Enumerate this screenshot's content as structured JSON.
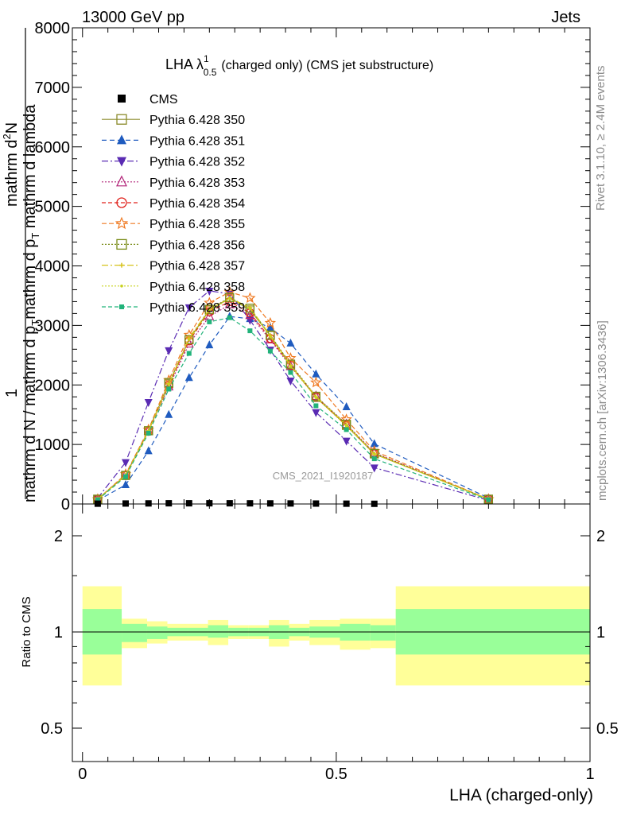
{
  "header": {
    "left": "13000 GeV pp",
    "right": "Jets"
  },
  "side_text": {
    "rivet": "Rivet 3.1.10, ≥ 2.4M events",
    "mcplots": "mcplots.cern.ch [arXiv:1306.3436]"
  },
  "watermark": "CMS_2021_I1920187",
  "chart_data": {
    "type": "line",
    "title_main": "LHA λ",
    "title_sup": "1",
    "title_sub": "0.5",
    "title_rest": "(charged only) (CMS jet substructure)",
    "xlabel": "LHA (charged-only)",
    "ylabel_line1": "mathrm d",
    "ylabel_line1_sup": "2",
    "ylabel_line1_rest": "N",
    "ylabel_line2": "mathrm d p",
    "ylabel_line2_sub": "T",
    "ylabel_line2_rest": " mathrm d lambda",
    "ylabel_frac_1": "1",
    "ylabel_frac_2": "mathrm d N / mathrm d p",
    "ylabel_frac_2_sub": "T",
    "xlim": [
      -0.02,
      1.0
    ],
    "ylim": [
      0,
      8000
    ],
    "y_ticks": [
      0,
      1000,
      2000,
      3000,
      4000,
      5000,
      6000,
      7000,
      8000
    ],
    "y_tick_labels": [
      "0",
      "1000",
      "2000",
      "3000",
      "4000",
      "5000",
      "6000",
      "7000",
      "8000"
    ],
    "x_ticks": [
      0,
      0.5,
      1
    ],
    "x_tick_labels": [
      "0",
      "0.5",
      "1"
    ],
    "bin_edges": [
      0,
      0.06,
      0.11,
      0.15,
      0.19,
      0.23,
      0.27,
      0.31,
      0.35,
      0.39,
      0.43,
      0.49,
      0.55,
      0.6,
      1.0
    ],
    "x": [
      0.03,
      0.085,
      0.13,
      0.17,
      0.21,
      0.25,
      0.29,
      0.33,
      0.37,
      0.41,
      0.46,
      0.52,
      0.575,
      0.8
    ],
    "data_points": {
      "name": "CMS",
      "x": [
        0.03,
        0.085,
        0.13,
        0.17,
        0.21,
        0.25,
        0.29,
        0.33,
        0.37,
        0.41,
        0.46,
        0.52,
        0.575
      ],
      "y": [
        5,
        8,
        10,
        12,
        12,
        12,
        12,
        11,
        10,
        9,
        7,
        5,
        3
      ]
    },
    "series": [
      {
        "name": "Pythia 6.428 350",
        "color": "#8b8b2b",
        "dash": "",
        "marker": "square-open",
        "y": [
          80,
          480,
          1230,
          2020,
          2760,
          3260,
          3460,
          3260,
          2830,
          2330,
          1790,
          1320,
          840,
          80
        ]
      },
      {
        "name": "Pythia 6.428 351",
        "color": "#1f5bbf",
        "dash": "6,4",
        "marker": "triangle-up",
        "y": [
          60,
          320,
          890,
          1500,
          2120,
          2670,
          3150,
          3110,
          2960,
          2700,
          2180,
          1630,
          1010,
          100
        ]
      },
      {
        "name": "Pythia 6.428 352",
        "color": "#5a2bb3",
        "dash": "8,3,2,3",
        "marker": "triangle-down",
        "y": [
          100,
          700,
          1710,
          2580,
          3300,
          3580,
          3530,
          3090,
          2590,
          2070,
          1540,
          1060,
          610,
          60
        ]
      },
      {
        "name": "Pythia 6.428 353",
        "color": "#b3267a",
        "dash": "2,2",
        "marker": "triangle-open",
        "y": [
          80,
          490,
          1230,
          1970,
          2690,
          3150,
          3350,
          3170,
          2760,
          2310,
          1810,
          1340,
          860,
          80
        ]
      },
      {
        "name": "Pythia 6.428 354",
        "color": "#e0201a",
        "dash": "5,3",
        "marker": "circle-open",
        "y": [
          80,
          480,
          1220,
          2000,
          2740,
          3230,
          3400,
          3210,
          2780,
          2330,
          1800,
          1320,
          850,
          80
        ]
      },
      {
        "name": "Pythia 6.428 355",
        "color": "#ef7a22",
        "dash": "6,3",
        "marker": "star-open",
        "y": [
          80,
          500,
          1250,
          2080,
          2840,
          3380,
          3560,
          3460,
          3040,
          2450,
          2040,
          1420,
          890,
          80
        ]
      },
      {
        "name": "Pythia 6.428 356",
        "color": "#7a8c18",
        "dash": "2,2",
        "marker": "square-open",
        "y": [
          80,
          480,
          1230,
          2040,
          2760,
          3270,
          3470,
          3290,
          2840,
          2350,
          1810,
          1340,
          850,
          80
        ]
      },
      {
        "name": "Pythia 6.428 357",
        "color": "#d6c21a",
        "dash": "8,3,2,3",
        "marker": "cross",
        "y": [
          80,
          480,
          1230,
          2020,
          2790,
          3270,
          3460,
          3300,
          2830,
          2330,
          1800,
          1330,
          840,
          80
        ]
      },
      {
        "name": "Pythia 6.428 358",
        "color": "#c8d21e",
        "dash": "2,2",
        "marker": "dot",
        "y": [
          80,
          480,
          1220,
          2010,
          2760,
          3250,
          3450,
          3280,
          2810,
          2310,
          1790,
          1310,
          840,
          80
        ]
      },
      {
        "name": "Pythia 6.428 359",
        "color": "#22b37a",
        "dash": "5,3",
        "marker": "square-filled",
        "y": [
          70,
          460,
          1190,
          1930,
          2530,
          3060,
          3130,
          2910,
          2570,
          2210,
          1650,
          1250,
          760,
          70
        ]
      }
    ],
    "ratio": {
      "ylabel": "Ratio to CMS",
      "y_ticks": [
        0.5,
        1,
        2
      ],
      "y_tick_labels": [
        "0.5",
        "1",
        "2"
      ],
      "band_outer_color": "#ffff99",
      "band_inner_color": "#99ff99",
      "bands": [
        {
          "lo_outer": 0.68,
          "hi_outer": 1.39,
          "lo_inner": 0.85,
          "hi_inner": 1.18
        },
        {
          "lo_outer": 0.89,
          "hi_outer": 1.1,
          "lo_inner": 0.93,
          "hi_inner": 1.06
        },
        {
          "lo_outer": 0.92,
          "hi_outer": 1.08,
          "lo_inner": 0.95,
          "hi_inner": 1.04
        },
        {
          "lo_outer": 0.94,
          "hi_outer": 1.06,
          "lo_inner": 0.97,
          "hi_inner": 1.03
        },
        {
          "lo_outer": 0.94,
          "hi_outer": 1.06,
          "lo_inner": 0.97,
          "hi_inner": 1.03
        },
        {
          "lo_outer": 0.91,
          "hi_outer": 1.09,
          "lo_inner": 0.96,
          "hi_inner": 1.05
        },
        {
          "lo_outer": 0.95,
          "hi_outer": 1.05,
          "lo_inner": 0.97,
          "hi_inner": 1.03
        },
        {
          "lo_outer": 0.95,
          "hi_outer": 1.05,
          "lo_inner": 0.97,
          "hi_inner": 1.03
        },
        {
          "lo_outer": 0.9,
          "hi_outer": 1.09,
          "lo_inner": 0.95,
          "hi_inner": 1.05
        },
        {
          "lo_outer": 0.94,
          "hi_outer": 1.06,
          "lo_inner": 0.97,
          "hi_inner": 1.03
        },
        {
          "lo_outer": 0.91,
          "hi_outer": 1.09,
          "lo_inner": 0.96,
          "hi_inner": 1.04
        },
        {
          "lo_outer": 0.88,
          "hi_outer": 1.1,
          "lo_inner": 0.94,
          "hi_inner": 1.06
        },
        {
          "lo_outer": 0.89,
          "hi_outer": 1.1,
          "lo_inner": 0.94,
          "hi_inner": 1.05
        },
        {
          "lo_outer": 0.68,
          "hi_outer": 1.39,
          "lo_inner": 0.85,
          "hi_inner": 1.18
        }
      ]
    }
  }
}
